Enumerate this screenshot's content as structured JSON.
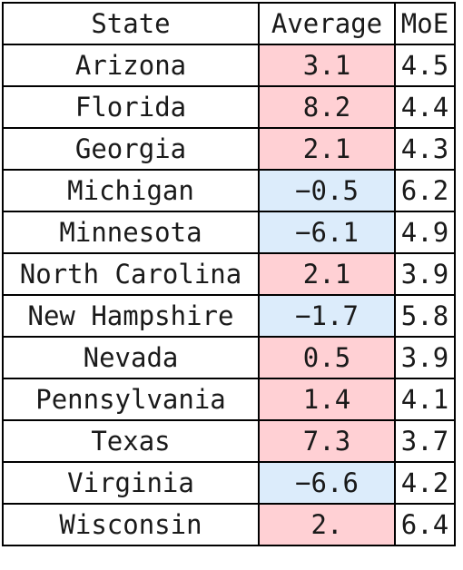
{
  "table": {
    "headers": [
      "State",
      "Average",
      "MoE"
    ],
    "colors": {
      "positive": "#ffd0d4",
      "negative": "#dcecfb"
    },
    "rows": [
      {
        "state": "Arizona",
        "average": "3.1",
        "sign": "pos",
        "moe": "4.5"
      },
      {
        "state": "Florida",
        "average": "8.2",
        "sign": "pos",
        "moe": "4.4"
      },
      {
        "state": "Georgia",
        "average": "2.1",
        "sign": "pos",
        "moe": "4.3"
      },
      {
        "state": "Michigan",
        "average": "−0.5",
        "sign": "neg",
        "moe": "6.2"
      },
      {
        "state": "Minnesota",
        "average": "−6.1",
        "sign": "neg",
        "moe": "4.9"
      },
      {
        "state": "North Carolina",
        "average": "2.1",
        "sign": "pos",
        "moe": "3.9"
      },
      {
        "state": "New Hampshire",
        "average": "−1.7",
        "sign": "neg",
        "moe": "5.8"
      },
      {
        "state": "Nevada",
        "average": "0.5",
        "sign": "pos",
        "moe": "3.9"
      },
      {
        "state": "Pennsylvania",
        "average": "1.4",
        "sign": "pos",
        "moe": "4.1"
      },
      {
        "state": "Texas",
        "average": "7.3",
        "sign": "pos",
        "moe": "3.7"
      },
      {
        "state": "Virginia",
        "average": "−6.6",
        "sign": "neg",
        "moe": "4.2"
      },
      {
        "state": "Wisconsin",
        "average": "2.",
        "sign": "pos",
        "moe": "6.4"
      }
    ]
  }
}
